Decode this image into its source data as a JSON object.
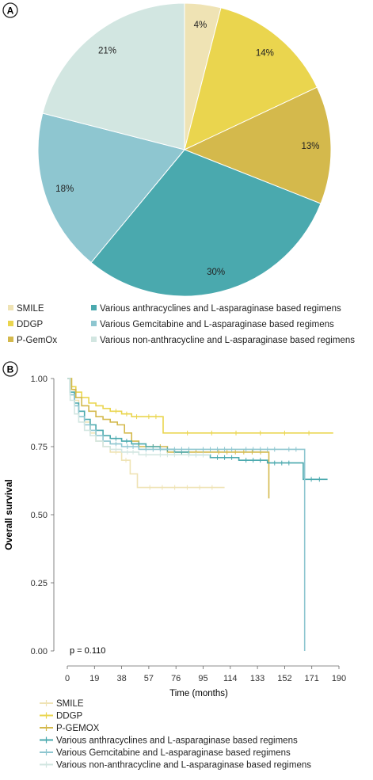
{
  "panel_labels": [
    "A",
    "B"
  ],
  "colors": {
    "SMILE": "#efe3b4",
    "DDGP": "#ead54e",
    "P-GemOx": "#d4b94c",
    "anthracyclines": "#4aa9ae",
    "gemcitabine": "#8ec6d0",
    "non_anthracycline": "#d2e6e1"
  },
  "chart_data": [
    {
      "type": "pie",
      "panel": "A",
      "slices": [
        {
          "label": "SMILE",
          "value": 4,
          "text": "4%",
          "color_key": "SMILE"
        },
        {
          "label": "DDGP",
          "value": 14,
          "text": "14%",
          "color_key": "DDGP"
        },
        {
          "label": "P-GemOx",
          "value": 13,
          "text": "13%",
          "color_key": "P-GemOx"
        },
        {
          "label": "Various anthracyclines and L-asparaginase based regimens",
          "value": 30,
          "text": "30%",
          "color_key": "anthracyclines"
        },
        {
          "label": "Various Gemcitabine and L-asparaginase based regimens",
          "value": 18,
          "text": "18%",
          "color_key": "gemcitabine"
        },
        {
          "label": "Various non-anthracycline and L-asparaginase based regimens",
          "value": 21,
          "text": "21%",
          "color_key": "non_anthracycline"
        }
      ],
      "legend_placement": "bottom"
    },
    {
      "type": "line",
      "panel": "B",
      "step": true,
      "xlabel": "Time (months)",
      "ylabel": "Overall survival",
      "xlim": [
        0,
        190
      ],
      "ylim": [
        0,
        1
      ],
      "xticks": [
        0,
        19,
        38,
        57,
        76,
        95,
        114,
        133,
        152,
        171,
        190
      ],
      "yticks": [
        "0.00",
        "0.25",
        "0.50",
        "0.75",
        "1.00"
      ],
      "annotation": "p = 0.110",
      "legend_placement": "bottom",
      "series": [
        {
          "name": "SMILE",
          "color_key": "SMILE",
          "x": [
            0,
            2,
            5,
            8,
            12,
            16,
            20,
            25,
            30,
            38,
            44,
            49,
            110
          ],
          "y": [
            1.0,
            0.96,
            0.92,
            0.88,
            0.84,
            0.8,
            0.77,
            0.75,
            0.73,
            0.7,
            0.65,
            0.6,
            0.6
          ]
        },
        {
          "name": "DDGP",
          "color_key": "DDGP",
          "x": [
            0,
            3,
            6,
            10,
            15,
            20,
            25,
            30,
            38,
            45,
            52,
            67,
            186
          ],
          "y": [
            1.0,
            0.97,
            0.95,
            0.93,
            0.91,
            0.9,
            0.89,
            0.88,
            0.87,
            0.86,
            0.86,
            0.8,
            0.8
          ]
        },
        {
          "name": "P-GEMOX",
          "color_key": "P-GemOx",
          "x": [
            0,
            3,
            6,
            10,
            15,
            20,
            25,
            30,
            35,
            40,
            45,
            50,
            70,
            100,
            141,
            141
          ],
          "y": [
            1.0,
            0.96,
            0.93,
            0.9,
            0.88,
            0.86,
            0.85,
            0.84,
            0.83,
            0.8,
            0.77,
            0.75,
            0.73,
            0.73,
            0.73,
            0.56
          ]
        },
        {
          "name": "Various anthracyclines and L-asparaginase based regimens",
          "color_key": "anthracyclines",
          "x": [
            0,
            2,
            5,
            8,
            12,
            16,
            20,
            25,
            30,
            38,
            45,
            55,
            65,
            75,
            85,
            100,
            120,
            140,
            160,
            165,
            182
          ],
          "y": [
            1.0,
            0.95,
            0.91,
            0.88,
            0.85,
            0.83,
            0.81,
            0.79,
            0.78,
            0.77,
            0.76,
            0.75,
            0.74,
            0.73,
            0.72,
            0.71,
            0.7,
            0.69,
            0.69,
            0.63,
            0.63
          ]
        },
        {
          "name": "Various Gemcitabine and L-asparaginase based regimens",
          "color_key": "gemcitabine",
          "x": [
            0,
            2,
            5,
            8,
            12,
            16,
            20,
            25,
            30,
            38,
            50,
            70,
            90,
            120,
            150,
            165,
            166
          ],
          "y": [
            1.0,
            0.94,
            0.9,
            0.86,
            0.83,
            0.81,
            0.79,
            0.77,
            0.76,
            0.75,
            0.74,
            0.74,
            0.74,
            0.74,
            0.74,
            0.74,
            0.0
          ]
        },
        {
          "name": "Various non-anthracycline and L-asparaginase based regimens",
          "color_key": "non_anthracycline",
          "x": [
            0,
            2,
            5,
            8,
            12,
            16,
            20,
            25,
            30,
            38,
            50,
            60,
            80,
            100
          ],
          "y": [
            1.0,
            0.92,
            0.87,
            0.84,
            0.81,
            0.79,
            0.77,
            0.75,
            0.74,
            0.73,
            0.72,
            0.72,
            0.72,
            0.72
          ]
        }
      ]
    }
  ]
}
